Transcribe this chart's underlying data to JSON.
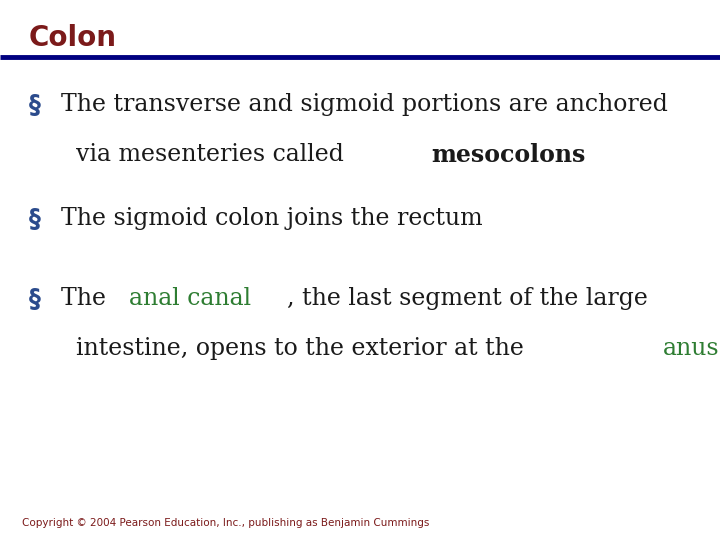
{
  "title": "Colon",
  "title_color": "#7B1A1A",
  "title_fontsize": 20,
  "line_color": "#000080",
  "background_color": "#FFFFFF",
  "bullet_color": "#2B4B8C",
  "text_color": "#1A1A1A",
  "green_color": "#2E7D32",
  "copyright": "Copyright © 2004 Pearson Education, Inc., publishing as Benjamin Cummings",
  "copyright_color": "#7B1A1A",
  "copyright_fontsize": 7.5,
  "body_fontsize": 17,
  "bullet_square": "§",
  "fig_width": 7.2,
  "fig_height": 5.4,
  "dpi": 100,
  "bullet_items": [
    {
      "lines": [
        [
          {
            "text": "The transverse and sigmoid portions are anchored",
            "bold": false,
            "color": "#1A1A1A"
          }
        ],
        [
          {
            "text": "via mesenteries called ",
            "bold": false,
            "color": "#1A1A1A"
          },
          {
            "text": "mesocolons",
            "bold": true,
            "color": "#1A1A1A"
          }
        ]
      ]
    },
    {
      "lines": [
        [
          {
            "text": "The sigmoid colon joins the rectum",
            "bold": false,
            "color": "#1A1A1A"
          }
        ]
      ]
    },
    {
      "lines": [
        [
          {
            "text": "The ",
            "bold": false,
            "color": "#1A1A1A"
          },
          {
            "text": "anal canal",
            "bold": false,
            "color": "#2E7D32"
          },
          {
            "text": ", the last segment of the large",
            "bold": false,
            "color": "#1A1A1A"
          }
        ],
        [
          {
            "text": "intestine, opens to the exterior at the ",
            "bold": false,
            "color": "#1A1A1A"
          },
          {
            "text": "anus",
            "bold": false,
            "color": "#2E7D32"
          }
        ]
      ]
    }
  ]
}
